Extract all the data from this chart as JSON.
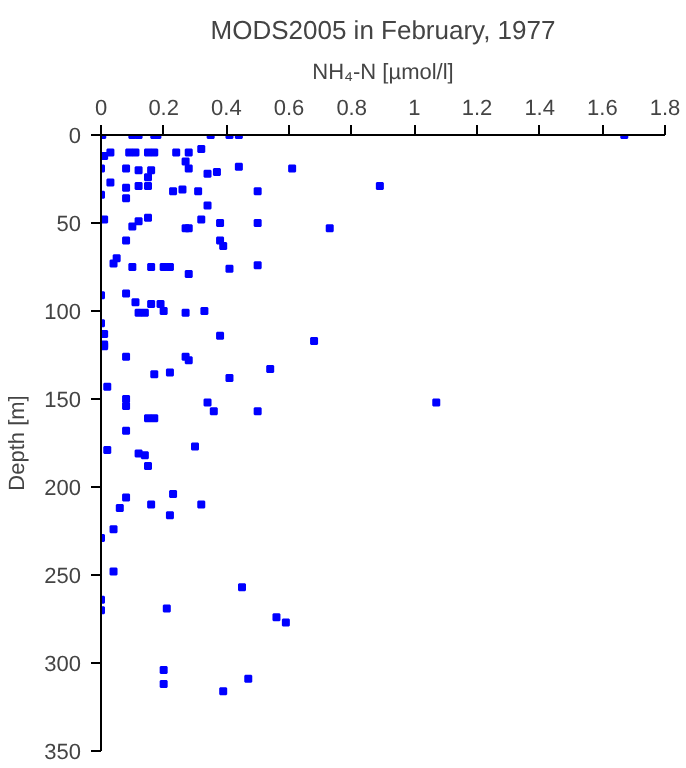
{
  "chart_data": {
    "type": "scatter",
    "title": "MODS2005 in February, 1977",
    "xlabel": "NH₄-N [µmol/l]",
    "ylabel": "Depth [m]",
    "xlim": [
      0,
      1.8
    ],
    "xticks": [
      0,
      0.2,
      0.4,
      0.6,
      0.8,
      1,
      1.2,
      1.4,
      1.6,
      1.8
    ],
    "ylim": [
      350,
      0
    ],
    "yticks": [
      0,
      50,
      100,
      150,
      200,
      250,
      300,
      350
    ],
    "grid": false,
    "marker": "square",
    "series": [
      {
        "color": "#0000ff",
        "x": [
          0.004,
          0.1,
          0.12,
          0.17,
          0.18,
          0.35,
          0.41,
          0.44,
          1.67,
          0.32,
          0.03,
          0.09,
          0.11,
          0.15,
          0.17,
          0.24,
          0.28,
          0.01,
          0.27,
          0.44,
          0.28,
          0.61,
          0.0,
          0.08,
          0.12,
          0.16,
          0.37,
          0.34,
          0.15,
          0.03,
          0.12,
          0.15,
          0.89,
          0.08,
          0.26,
          0.23,
          0.31,
          0.5,
          0.0,
          0.08,
          0.34,
          0.15,
          0.32,
          0.01,
          0.12,
          0.38,
          0.5,
          0.1,
          0.27,
          0.28,
          0.73,
          0.08,
          0.38,
          0.39,
          0.05,
          0.04,
          0.1,
          0.16,
          0.2,
          0.22,
          0.5,
          0.41,
          0.28,
          0.0,
          0.08,
          0.11,
          0.16,
          0.19,
          0.12,
          0.14,
          0.2,
          0.27,
          0.33,
          0.0,
          0.01,
          0.38,
          0.68,
          0.01,
          0.01,
          0.08,
          0.27,
          0.28,
          0.54,
          0.22,
          0.17,
          0.41,
          0.02,
          0.08,
          1.07,
          0.34,
          0.08,
          0.36,
          0.5,
          0.15,
          0.17,
          0.08,
          0.3,
          0.02,
          0.12,
          0.14,
          0.15,
          0.23,
          0.08,
          0.16,
          0.32,
          0.06,
          0.22,
          0.04,
          0.0,
          0.04,
          0.45,
          0.0,
          0.21,
          0.0,
          0.56,
          0.59,
          0.2,
          0.47,
          0.2,
          0.39
        ],
        "values": [
          0,
          0,
          0,
          0,
          0,
          0,
          0,
          0,
          0,
          8,
          10,
          10,
          10,
          10,
          10,
          10,
          10,
          12,
          15,
          18,
          19,
          19,
          19,
          19,
          20,
          20,
          21,
          22,
          24,
          27,
          29,
          29,
          29,
          30,
          31,
          32,
          32,
          32,
          34,
          36,
          40,
          47,
          48,
          48,
          49,
          50,
          50,
          52,
          53,
          53,
          53,
          60,
          60,
          63,
          70,
          73,
          75,
          75,
          75,
          75,
          74,
          76,
          79,
          91,
          90,
          95,
          96,
          96,
          101,
          101,
          100,
          101,
          100,
          107,
          113,
          114,
          117,
          119,
          120,
          126,
          126,
          128,
          133,
          135,
          136,
          138,
          143,
          150,
          152,
          152,
          154,
          157,
          157,
          161,
          161,
          168,
          177,
          179,
          181,
          182,
          188,
          204,
          206,
          210,
          210,
          212,
          216,
          224,
          229,
          248,
          257,
          264,
          269,
          270,
          274,
          277,
          304,
          309,
          312,
          316
        ]
      }
    ]
  }
}
